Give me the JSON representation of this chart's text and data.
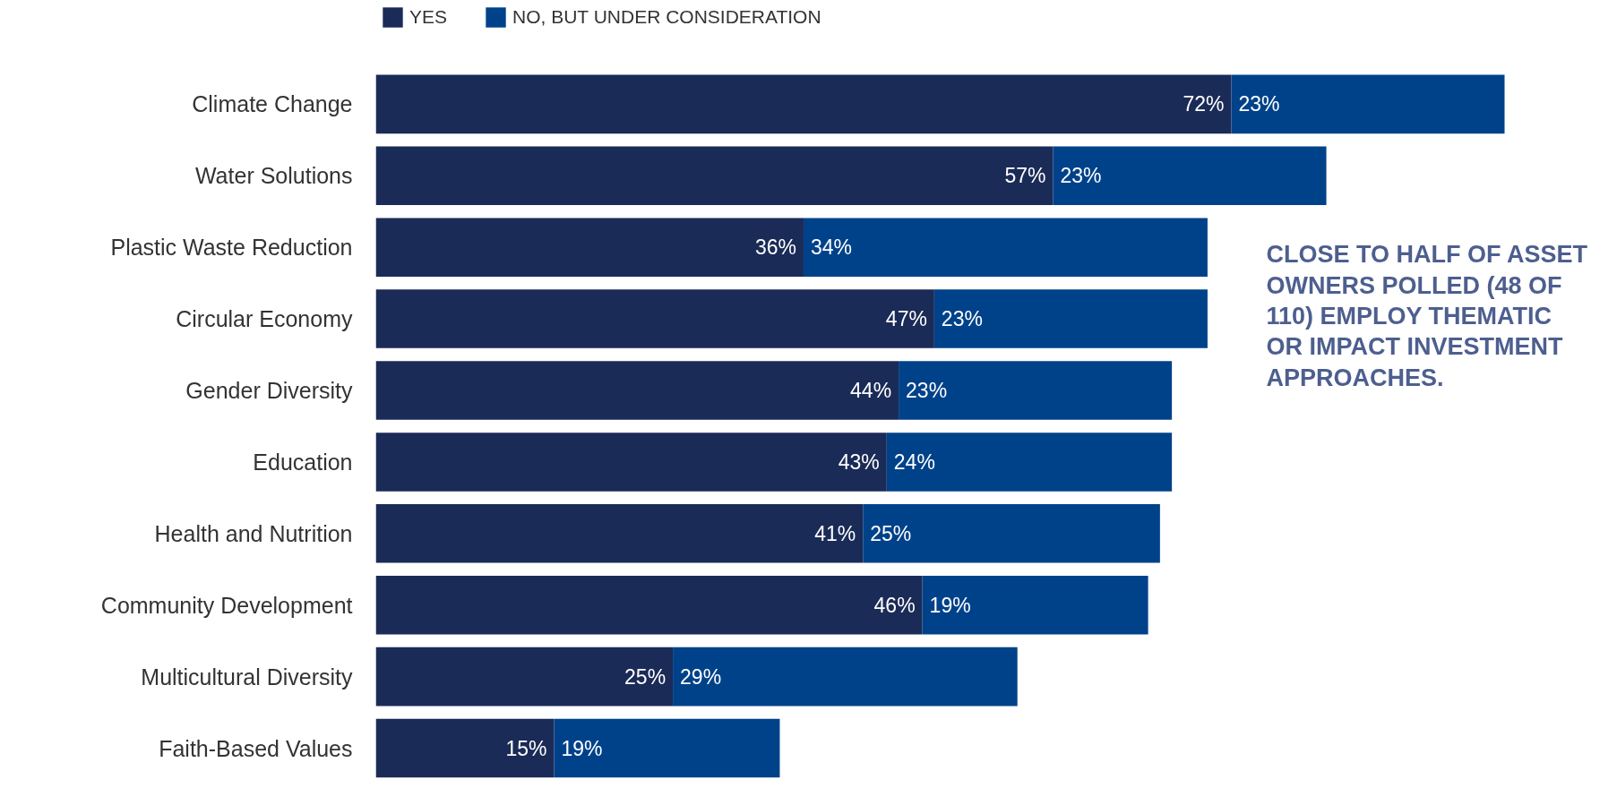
{
  "chart_data": {
    "type": "bar",
    "orientation": "horizontal",
    "stacked": true,
    "legend": "top left",
    "grid": false,
    "categories": [
      "Climate Change",
      "Water Solutions",
      "Plastic Waste Reduction",
      "Circular Economy",
      "Gender Diversity",
      "Education",
      "Health and Nutrition",
      "Community Development",
      "Multicultural Diversity",
      "Faith-Based Values"
    ],
    "series": [
      {
        "name": "YES",
        "color": "#1b2b57",
        "values": [
          72,
          57,
          36,
          47,
          44,
          43,
          41,
          46,
          25,
          15
        ],
        "value_labels": [
          "72%",
          "57%",
          "36%",
          "47%",
          "44%",
          "43%",
          "41%",
          "46%",
          "25%",
          "15%"
        ]
      },
      {
        "name": "NO, BUT UNDER CONSIDERATION",
        "color": "#00428a",
        "values": [
          23,
          23,
          34,
          23,
          23,
          24,
          25,
          19,
          29,
          19
        ],
        "value_labels": [
          "23%",
          "23%",
          "34%",
          "23%",
          "23%",
          "24%",
          "25%",
          "19%",
          "29%",
          "19%"
        ]
      }
    ],
    "annotations": [
      "CLOSE TO HALF OF ASSET OWNERS POLLED (48 OF 110) EMPLOY THEMATIC OR IMPACT INVESTMENT APPROACHES."
    ]
  }
}
